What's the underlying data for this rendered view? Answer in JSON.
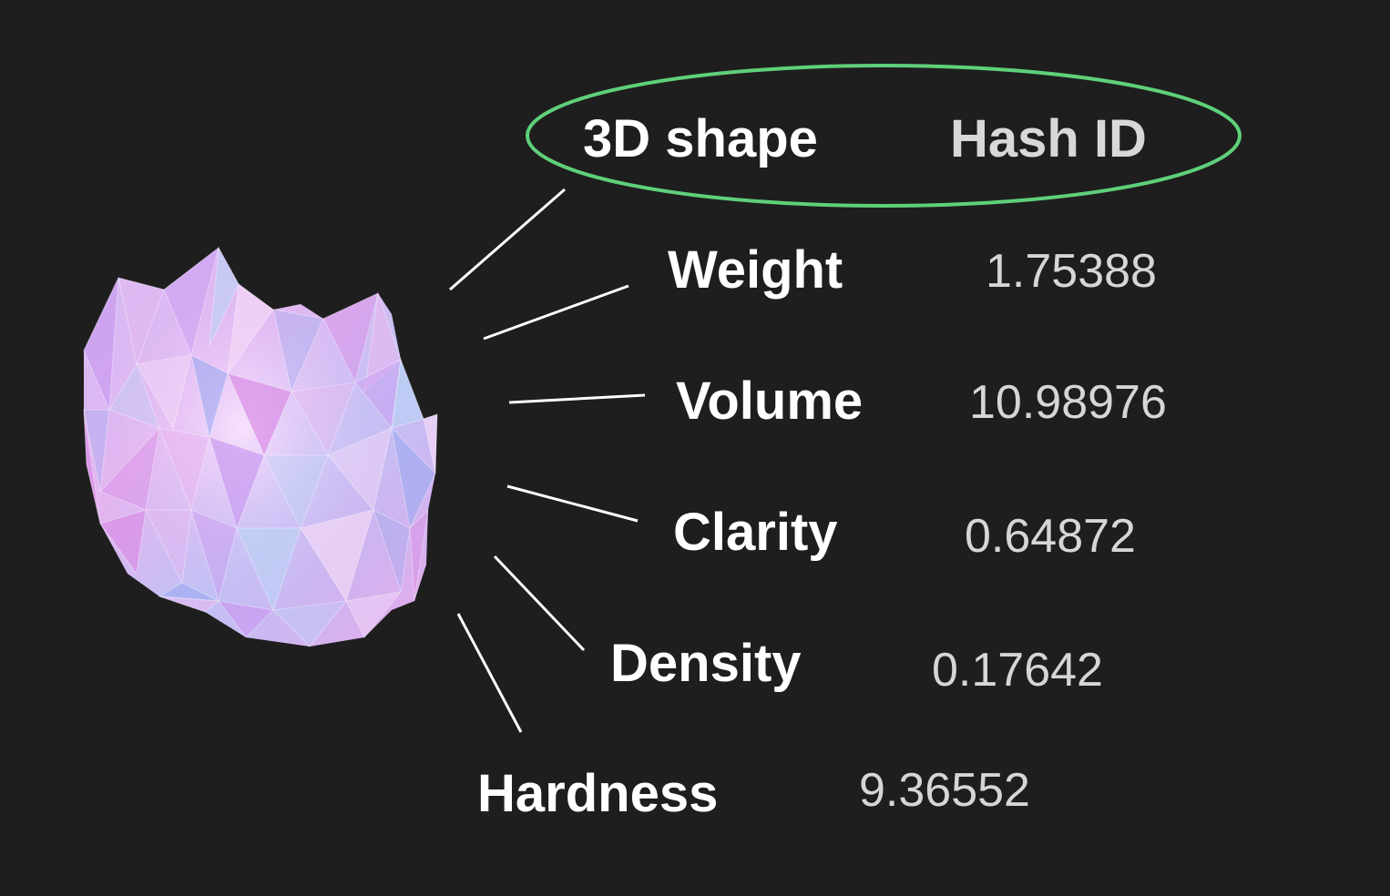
{
  "header": {
    "left": "3D shape",
    "right": "Hash ID",
    "highlight_color": "#5fd07a"
  },
  "attributes": [
    {
      "label": "Weight",
      "value": "1.75388"
    },
    {
      "label": "Volume",
      "value": "10.98976"
    },
    {
      "label": "Clarity",
      "value": "0.64872"
    },
    {
      "label": "Density",
      "value": "0.17642"
    },
    {
      "label": "Hardness",
      "value": "9.36552"
    }
  ],
  "crystal": {
    "icon": "crystal-gem-icon",
    "colors": [
      "#e9b7f2",
      "#c99bf0",
      "#b9d4f5",
      "#f3d8f7",
      "#9aa8ef",
      "#d98ee6"
    ]
  }
}
